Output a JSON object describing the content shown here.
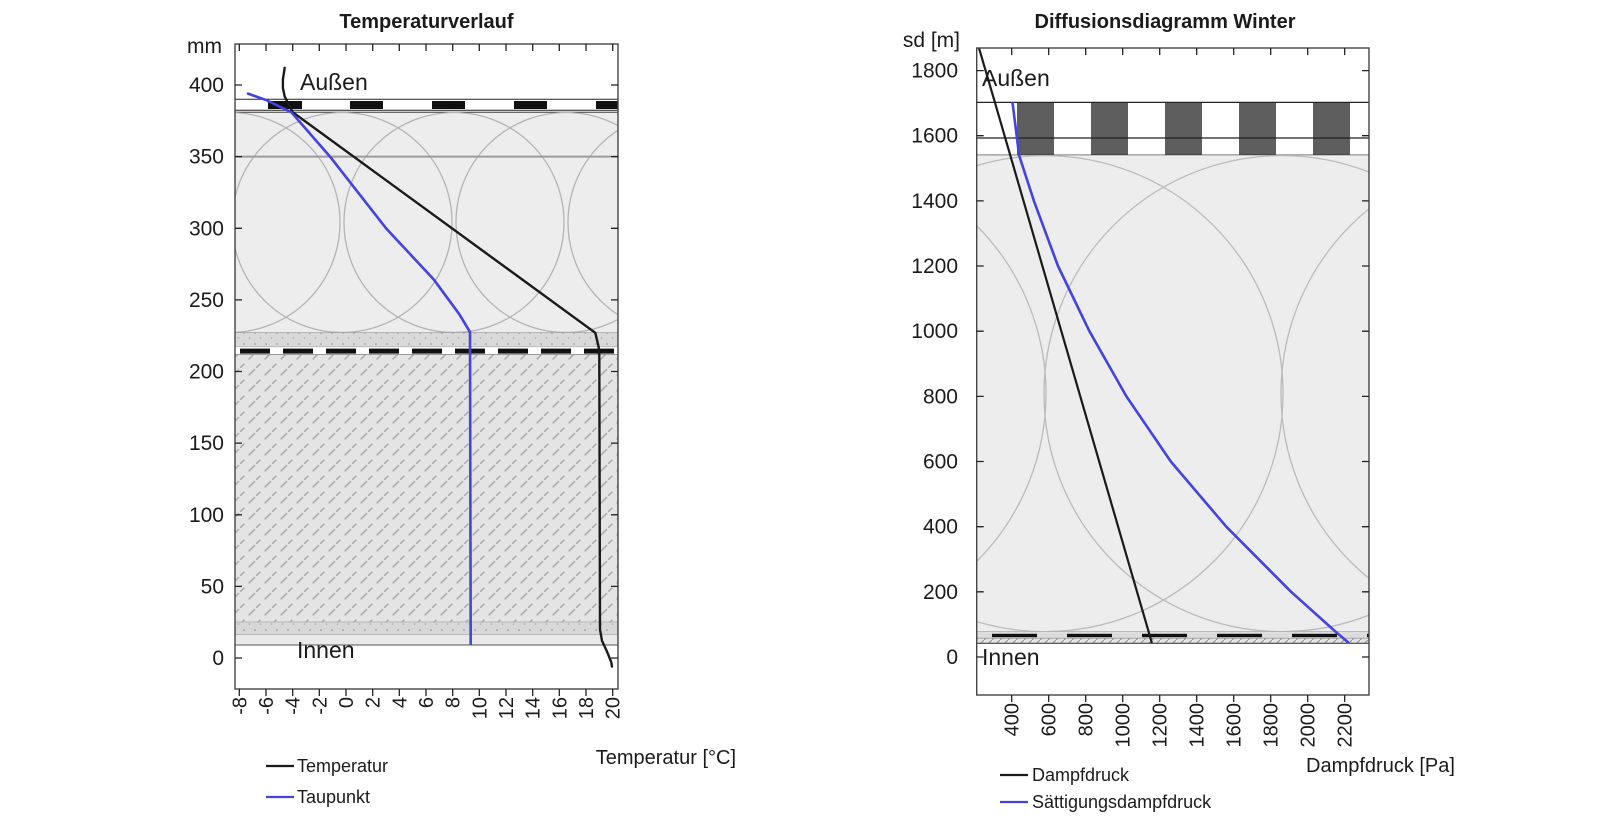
{
  "left_chart": {
    "title": "Temperaturverlauf",
    "y_unit_label": "mm",
    "x_axis_label": "Temperatur [°C]",
    "outside_label": "Außen",
    "inside_label": "Innen",
    "y_ticks": [
      "400",
      "350",
      "300",
      "250",
      "200",
      "150",
      "100",
      "50",
      "0"
    ],
    "x_ticks": [
      "-8",
      "-6",
      "-4",
      "-2",
      "0",
      "2",
      "4",
      "6",
      "8",
      "10",
      "12",
      "14",
      "16",
      "18",
      "20"
    ],
    "legend": {
      "items": [
        {
          "label": "Temperatur"
        },
        {
          "label": "Taupunkt"
        }
      ]
    },
    "chart_data": {
      "type": "line",
      "title": "Temperaturverlauf",
      "xlabel": "Temperatur [°C]",
      "ylabel": "mm",
      "x_range": [
        -8.3,
        20.4
      ],
      "y_range": [
        -21,
        428
      ],
      "grid": false,
      "legend_position": "below-left",
      "series": [
        {
          "name": "Temperatur",
          "color": "#1a1a1a",
          "width": 2.4,
          "points": [
            [
              -4.6,
              412
            ],
            [
              -4.73,
              404
            ],
            [
              -4.73,
              398
            ],
            [
              -4.6,
              392
            ],
            [
              -4.0,
              381
            ],
            [
              18.7,
              227
            ],
            [
              18.95,
              217
            ],
            [
              19.0,
              211
            ],
            [
              19.05,
              20
            ],
            [
              19.2,
              12
            ],
            [
              19.6,
              4
            ],
            [
              19.9,
              -3
            ],
            [
              19.95,
              -6
            ]
          ]
        },
        {
          "name": "Taupunkt",
          "color": "#4343e0",
          "width": 2.6,
          "points": [
            [
              -7.35,
              394
            ],
            [
              -6.0,
              389.5
            ],
            [
              -4.1,
              381
            ],
            [
              -1.2,
              350
            ],
            [
              3.0,
              300
            ],
            [
              6.6,
              264
            ],
            [
              8.5,
              240
            ],
            [
              9.3,
              227.5
            ],
            [
              9.35,
              10
            ]
          ]
        }
      ]
    }
  },
  "right_chart": {
    "title": "Diffusionsdiagramm Winter",
    "y_unit_label": "sd [m]",
    "x_axis_label": "Dampfdruck [Pa]",
    "outside_label": "Außen",
    "inside_label": "Innen",
    "y_ticks": [
      "1800",
      "1600",
      "1400",
      "1200",
      "1000",
      "800",
      "600",
      "400",
      "200",
      "0"
    ],
    "x_ticks": [
      "400",
      "600",
      "800",
      "1000",
      "1200",
      "1400",
      "1600",
      "1800",
      "2000",
      "2200"
    ],
    "legend": {
      "items": [
        {
          "label": "Dampfdruck"
        },
        {
          "label": "Sättigungsdampfdruck"
        }
      ]
    },
    "chart_data": {
      "type": "line",
      "title": "Diffusionsdiagramm Winter",
      "xlabel": "Dampfdruck [Pa]",
      "ylabel": "sd [m]",
      "x_range": [
        210,
        2330
      ],
      "y_range": [
        -116,
        1868
      ],
      "grid": false,
      "legend_position": "below-left",
      "series": [
        {
          "name": "Dampfdruck",
          "color": "#1a1a1a",
          "width": 2.2,
          "points": [
            [
              224,
              1868
            ],
            [
              310,
              1700
            ],
            [
              1157,
              45
            ]
          ]
        },
        {
          "name": "Sättigungsdampfdruck",
          "color": "#4343e0",
          "width": 2.6,
          "points": [
            [
              405,
              1700
            ],
            [
              440,
              1540
            ],
            [
              520,
              1400
            ],
            [
              650,
              1200
            ],
            [
              820,
              1000
            ],
            [
              1020,
              800
            ],
            [
              1260,
              600
            ],
            [
              1560,
              400
            ],
            [
              1910,
              200
            ],
            [
              2150,
              78
            ],
            [
              2218,
              45
            ]
          ]
        }
      ]
    }
  },
  "colors": {
    "series_black": "#1a1a1a",
    "series_blue": "#4343e0",
    "membrane_block_dark": "#5e5e5e",
    "insulation_bg": "#ededed",
    "concrete_bg": "#e4e4e4",
    "plaster_bg": "#d8d8d8",
    "axis": "#333333"
  }
}
